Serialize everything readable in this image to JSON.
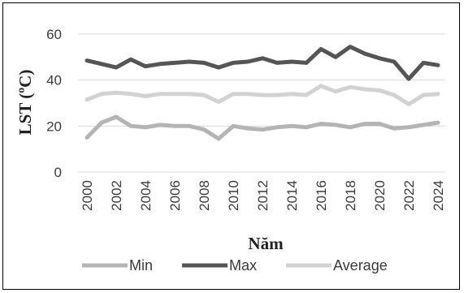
{
  "chart_data": {
    "type": "line",
    "title": "",
    "xlabel": "Năm",
    "ylabel": "LST (ºC)",
    "x": [
      2000,
      2001,
      2002,
      2003,
      2004,
      2005,
      2006,
      2007,
      2008,
      2009,
      2010,
      2011,
      2012,
      2013,
      2014,
      2015,
      2016,
      2017,
      2018,
      2019,
      2020,
      2021,
      2022,
      2023,
      2024
    ],
    "x_tick_labels": [
      "2000",
      "2002",
      "2004",
      "2006",
      "2008",
      "2010",
      "2012",
      "2014",
      "2016",
      "2018",
      "2020",
      "2022",
      "2024"
    ],
    "x_tick_values": [
      2000,
      2002,
      2004,
      2006,
      2008,
      2010,
      2012,
      2014,
      2016,
      2018,
      2020,
      2022,
      2024
    ],
    "y_ticks": [
      0,
      20,
      40,
      60
    ],
    "y_tick_labels": [
      "0",
      "20",
      "40",
      "60"
    ],
    "ylim": [
      0,
      60
    ],
    "grid": true,
    "legend_position": "bottom",
    "series": [
      {
        "name": "Min",
        "color": "#b4b4b4",
        "values": [
          15.0,
          21.5,
          24.0,
          20.0,
          19.5,
          20.5,
          20.0,
          20.0,
          18.5,
          14.5,
          20.0,
          19.0,
          18.5,
          19.5,
          20.0,
          19.5,
          21.0,
          20.5,
          19.5,
          21.0,
          21.0,
          19.0,
          19.5,
          20.5,
          21.5
        ]
      },
      {
        "name": "Max",
        "color": "#555555",
        "values": [
          48.5,
          47.0,
          45.5,
          49.0,
          46.0,
          47.0,
          47.5,
          48.0,
          47.5,
          45.5,
          47.5,
          48.0,
          49.5,
          47.5,
          48.0,
          47.5,
          53.5,
          50.0,
          54.5,
          51.5,
          49.5,
          48.0,
          40.5,
          47.5,
          46.5
        ]
      },
      {
        "name": "Average",
        "color": "#d2d2d2",
        "values": [
          31.5,
          34.0,
          34.5,
          34.0,
          33.0,
          34.0,
          34.0,
          34.0,
          33.5,
          30.5,
          34.0,
          34.0,
          33.5,
          33.5,
          34.0,
          33.5,
          37.5,
          35.0,
          37.0,
          36.0,
          35.5,
          33.5,
          29.5,
          33.5,
          34.0
        ]
      }
    ]
  }
}
